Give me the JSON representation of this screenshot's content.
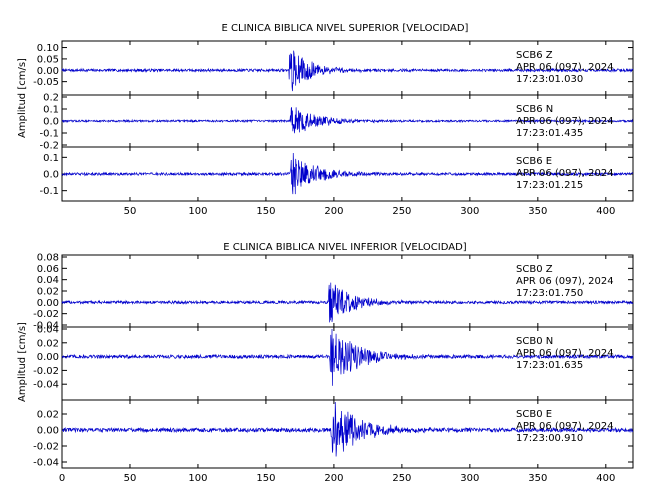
{
  "chart_data": [
    {
      "type": "line",
      "title": "E CLINICA BIBLICA NIVEL SUPERIOR [VELOCIDAD]",
      "ylabel": "Amplitud [cm/s]",
      "xlabel": "",
      "xlim": [
        0,
        420
      ],
      "xticks": [
        "50",
        "100",
        "150",
        "200",
        "250",
        "300",
        "350",
        "400"
      ],
      "xtick_values": [
        50,
        100,
        150,
        200,
        250,
        300,
        350,
        400
      ],
      "color": "#0000cc",
      "traces": [
        {
          "station": "SCB6",
          "component": "Z",
          "date": "APR 06 (097), 2024",
          "time": "17:23:01.030",
          "ylim": [
            -0.1,
            0.12
          ],
          "yticks": [
            "0.10",
            "0.05",
            "0.00",
            "-0.05"
          ],
          "ytick_values": [
            0.1,
            0.05,
            0.0,
            -0.05
          ],
          "noise": 0.006,
          "onset": 167,
          "peak": 0.11,
          "decay": 14
        },
        {
          "station": "SCB6",
          "component": "N",
          "date": "APR 06 (097), 2024",
          "time": "17:23:01.435",
          "ylim": [
            -0.2,
            0.2
          ],
          "yticks": [
            "0.2",
            "0.1",
            "0.0",
            "-0.1",
            "-0.2"
          ],
          "ytick_values": [
            0.2,
            0.1,
            0.0,
            -0.1,
            -0.2
          ],
          "noise": 0.008,
          "onset": 168,
          "peak": 0.15,
          "decay": 18
        },
        {
          "station": "SCB6",
          "component": "E",
          "date": "APR 06 (097), 2024",
          "time": "17:23:01.215",
          "ylim": [
            -0.15,
            0.15
          ],
          "yticks": [
            "0.1",
            "0.0",
            "-0.1"
          ],
          "ytick_values": [
            0.1,
            0.0,
            -0.1
          ],
          "noise": 0.008,
          "onset": 168,
          "peak": 0.14,
          "decay": 18
        }
      ]
    },
    {
      "type": "line",
      "title": "E CLINICA BIBLICA NIVEL INFERIOR [VELOCIDAD]",
      "ylabel": "Amplitud [cm/s]",
      "xlabel": "",
      "xlim": [
        0,
        420
      ],
      "xticks": [
        "0",
        "50",
        "100",
        "150",
        "200",
        "250",
        "300",
        "350",
        "400"
      ],
      "xtick_values": [
        0,
        50,
        100,
        150,
        200,
        250,
        300,
        350,
        400
      ],
      "color": "#0000cc",
      "traces": [
        {
          "station": "SCB0",
          "component": "Z",
          "date": "APR 06 (097), 2024",
          "time": "17:23:01.750",
          "ylim": [
            -0.04,
            0.08
          ],
          "yticks": [
            "0.08",
            "0.06",
            "0.04",
            "0.02",
            "0.00",
            "-0.02",
            "-0.04"
          ],
          "ytick_values": [
            0.08,
            0.06,
            0.04,
            0.02,
            0.0,
            -0.02,
            -0.04
          ],
          "noise": 0.0025,
          "onset": 196,
          "peak": 0.045,
          "decay": 16
        },
        {
          "station": "SCB0",
          "component": "N",
          "date": "APR 06 (097), 2024",
          "time": "17:23:01.635",
          "ylim": [
            -0.06,
            0.04
          ],
          "yticks": [
            "0.04",
            "0.02",
            "0.00",
            "-0.02",
            "-0.04"
          ],
          "ytick_values": [
            0.04,
            0.02,
            0.0,
            -0.02,
            -0.04
          ],
          "noise": 0.0025,
          "onset": 197,
          "peak": 0.05,
          "decay": 18
        },
        {
          "station": "SCB0",
          "component": "E",
          "date": "APR 06 (097), 2024",
          "time": "17:23:00.910",
          "ylim": [
            -0.045,
            0.035
          ],
          "yticks": [
            "0.02",
            "0.00",
            "-0.02",
            "-0.04"
          ],
          "ytick_values": [
            0.02,
            0.0,
            -0.02,
            -0.04
          ],
          "noise": 0.0025,
          "onset": 198,
          "peak": 0.04,
          "decay": 20
        }
      ]
    }
  ]
}
